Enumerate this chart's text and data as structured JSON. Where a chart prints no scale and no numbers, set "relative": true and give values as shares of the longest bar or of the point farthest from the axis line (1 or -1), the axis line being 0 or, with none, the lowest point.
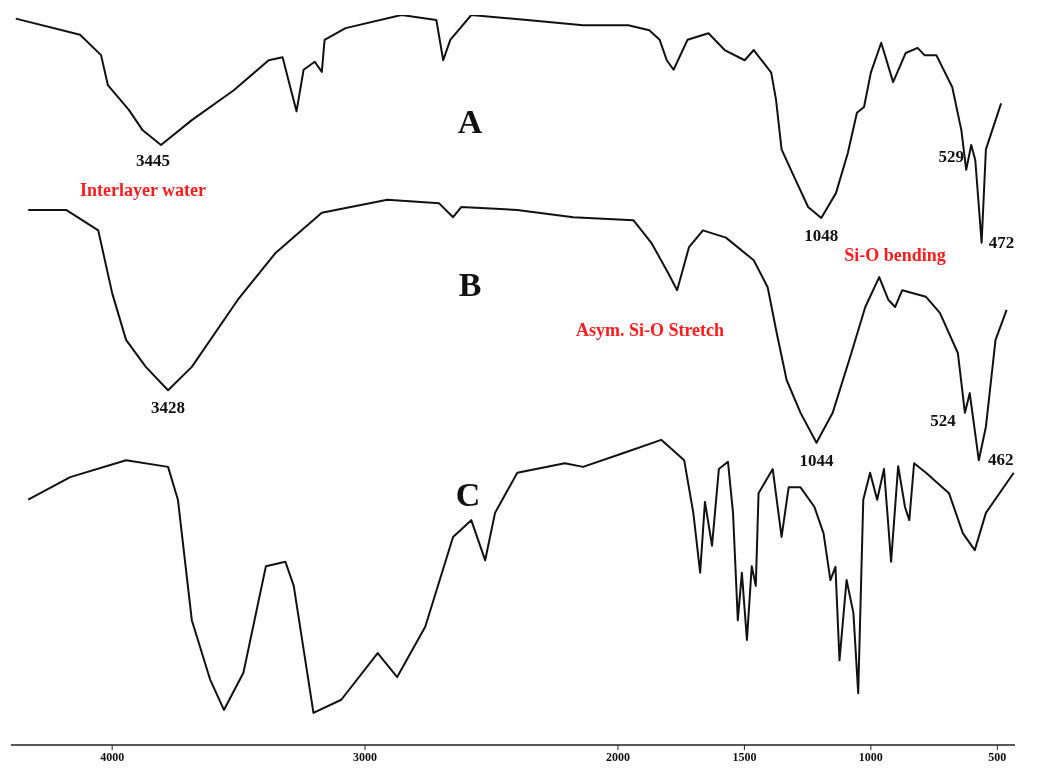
{
  "chart_data": {
    "type": "line",
    "relative": true,
    "marker": "none",
    "tick_labels": "x",
    "xlim": [
      4400,
      430
    ],
    "xticks": [
      4000,
      3000,
      2000,
      1500,
      1000,
      500
    ],
    "series": [
      {
        "name": "A",
        "color": "#111111",
        "x": [
          4381,
          4127,
          4044,
          4017,
          3934,
          3879,
          3807,
          3685,
          3519,
          3381,
          3326,
          3298,
          3271,
          3243,
          3199,
          3171,
          3160,
          3077,
          2856,
          2718,
          2691,
          2663,
          2580,
          2359,
          2138,
          1959,
          1876,
          1835,
          1807,
          1780,
          1725,
          1642,
          1578,
          1499,
          1463,
          1394,
          1375,
          1353,
          1311,
          1248,
          1196,
          1138,
          1091,
          1055,
          1027,
          1000,
          959,
          912,
          862,
          815,
          788,
          741,
          678,
          642,
          623,
          603,
          587,
          562,
          545,
          485
        ],
        "values": [
          0.995,
          0.973,
          0.945,
          0.904,
          0.87,
          0.842,
          0.822,
          0.856,
          0.897,
          0.938,
          0.942,
          0.904,
          0.868,
          0.925,
          0.936,
          0.922,
          0.966,
          0.982,
          1,
          0.993,
          0.938,
          0.966,
          1,
          0.993,
          0.986,
          0.986,
          0.979,
          0.966,
          0.938,
          0.925,
          0.966,
          0.975,
          0.952,
          0.938,
          0.952,
          0.921,
          0.884,
          0.816,
          0.784,
          0.737,
          0.722,
          0.756,
          0.811,
          0.866,
          0.874,
          0.921,
          0.962,
          0.908,
          0.948,
          0.955,
          0.945,
          0.945,
          0.901,
          0.842,
          0.788,
          0.822,
          0.801,
          0.688,
          0.816,
          0.879
        ]
      },
      {
        "name": "B",
        "color": "#111111",
        "x": [
          4332,
          4182,
          4055,
          4000,
          3945,
          3867,
          3779,
          3685,
          3503,
          3354,
          3171,
          2912,
          2707,
          2652,
          2619,
          2398,
          2177,
          1939,
          1868,
          1802,
          1766,
          1719,
          1664,
          1573,
          1463,
          1408,
          1372,
          1333,
          1278,
          1215,
          1151,
          1077,
          1022,
          967,
          931,
          904,
          876,
          782,
          727,
          656,
          628,
          609,
          573,
          545,
          507,
          463
        ],
        "values": [
          0.733,
          0.733,
          0.705,
          0.619,
          0.555,
          0.518,
          0.486,
          0.518,
          0.61,
          0.674,
          0.729,
          0.747,
          0.742,
          0.723,
          0.737,
          0.733,
          0.723,
          0.719,
          0.688,
          0.647,
          0.623,
          0.682,
          0.705,
          0.695,
          0.664,
          0.627,
          0.564,
          0.5,
          0.455,
          0.414,
          0.455,
          0.537,
          0.6,
          0.641,
          0.61,
          0.6,
          0.623,
          0.614,
          0.592,
          0.537,
          0.455,
          0.482,
          0.39,
          0.436,
          0.555,
          0.596
        ]
      },
      {
        "name": "C",
        "color": "#111111",
        "x": [
          4332,
          4166,
          3945,
          3779,
          3740,
          3685,
          3613,
          3558,
          3481,
          3392,
          3315,
          3282,
          3204,
          3094,
          2950,
          2873,
          2762,
          2652,
          2580,
          2525,
          2486,
          2398,
          2210,
          2138,
          1978,
          1829,
          1738,
          1702,
          1675,
          1656,
          1628,
          1601,
          1565,
          1545,
          1526,
          1510,
          1490,
          1471,
          1455,
          1444,
          1388,
          1353,
          1325,
          1278,
          1223,
          1187,
          1160,
          1140,
          1124,
          1096,
          1069,
          1050,
          1030,
          1003,
          975,
          948,
          920,
          892,
          865,
          848,
          829,
          782,
          691,
          636,
          589,
          545,
          435
        ],
        "values": [
          0.336,
          0.367,
          0.39,
          0.381,
          0.336,
          0.171,
          0.09,
          0.048,
          0.099,
          0.245,
          0.251,
          0.218,
          0.044,
          0.062,
          0.126,
          0.093,
          0.162,
          0.285,
          0.308,
          0.253,
          0.318,
          0.373,
          0.386,
          0.381,
          0.4,
          0.418,
          0.39,
          0.318,
          0.236,
          0.333,
          0.273,
          0.378,
          0.388,
          0.318,
          0.171,
          0.236,
          0.144,
          0.245,
          0.218,
          0.345,
          0.378,
          0.285,
          0.353,
          0.353,
          0.326,
          0.29,
          0.226,
          0.244,
          0.116,
          0.226,
          0.181,
          0.071,
          0.336,
          0.373,
          0.336,
          0.378,
          0.251,
          0.382,
          0.326,
          0.308,
          0.386,
          0.373,
          0.345,
          0.29,
          0.267,
          0.318,
          0.373
        ]
      }
    ],
    "annotations": [
      {
        "text": "3445",
        "x": 3807,
        "y": 0.822
      },
      "Interlayer water",
      {
        "text": "1048",
        "x": 1196,
        "y": 0.722
      },
      {
        "text": "529",
        "x": 603,
        "y": 0.822
      },
      {
        "text": "472",
        "x": 562,
        "y": 0.688
      },
      {
        "text": "3428",
        "x": 3779,
        "y": 0.486
      },
      "Asym. Si-O Stretch",
      "Si-O bending",
      {
        "text": "1044",
        "x": 1215,
        "y": 0.414
      },
      {
        "text": "524",
        "x": 628,
        "y": 0.455
      },
      {
        "text": "462",
        "x": 573,
        "y": 0.39
      }
    ]
  }
}
